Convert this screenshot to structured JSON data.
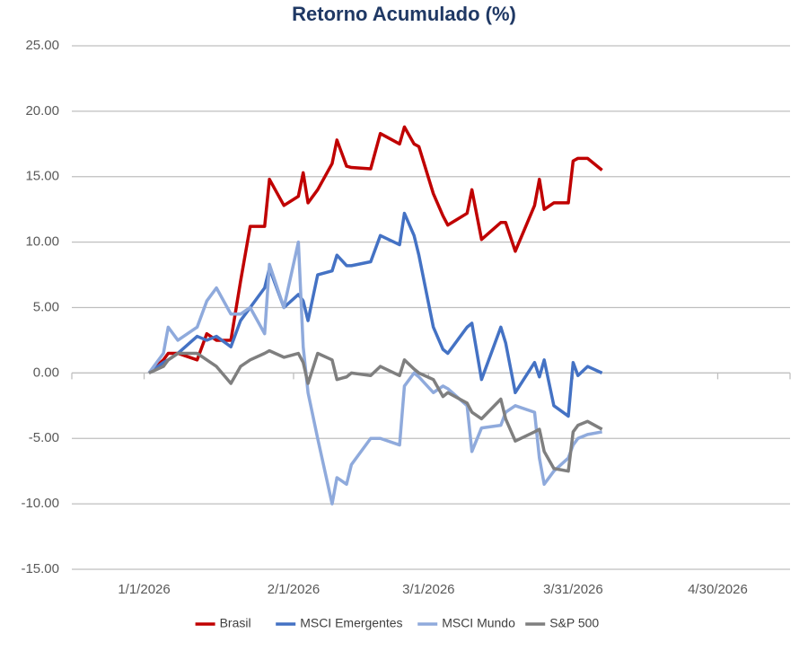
{
  "chart_data": {
    "type": "line",
    "title": "Retorno Acumulado (%)",
    "x": [
      "2026-01-02",
      "2026-01-05",
      "2026-01-06",
      "2026-01-08",
      "2026-01-12",
      "2026-01-14",
      "2026-01-16",
      "2026-01-19",
      "2026-01-21",
      "2026-01-23",
      "2026-01-26",
      "2026-01-27",
      "2026-01-30",
      "2026-02-02",
      "2026-02-03",
      "2026-02-04",
      "2026-02-06",
      "2026-02-09",
      "2026-02-10",
      "2026-02-12",
      "2026-02-13",
      "2026-02-17",
      "2026-02-19",
      "2026-02-23",
      "2026-02-24",
      "2026-02-26",
      "2026-02-27",
      "2026-03-02",
      "2026-03-04",
      "2026-03-05",
      "2026-03-09",
      "2026-03-10",
      "2026-03-12",
      "2026-03-16",
      "2026-03-17",
      "2026-03-19",
      "2026-03-23",
      "2026-03-24",
      "2026-03-25",
      "2026-03-27",
      "2026-03-30",
      "2026-03-31",
      "2026-04-01",
      "2026-04-03",
      "2026-04-06"
    ],
    "series": [
      {
        "name": "Brasil",
        "color": "#c00000",
        "values": [
          0,
          1.0,
          1.5,
          1.5,
          1.0,
          3.0,
          2.5,
          2.5,
          7.0,
          11.2,
          11.2,
          14.8,
          12.8,
          13.5,
          15.3,
          13.0,
          14.0,
          16.0,
          17.8,
          15.8,
          15.7,
          15.6,
          18.3,
          17.5,
          18.8,
          17.5,
          17.3,
          13.7,
          12.0,
          11.3,
          12.2,
          14.0,
          10.2,
          11.5,
          11.5,
          9.3,
          12.8,
          14.8,
          12.5,
          13.0,
          13.0,
          16.2,
          16.4,
          16.4,
          15.5
        ]
      },
      {
        "name": "MSCI Emergentes",
        "color": "#4472c4",
        "values": [
          0,
          0.8,
          1.0,
          1.5,
          2.8,
          2.5,
          2.8,
          2.0,
          4.0,
          5.0,
          6.5,
          8.0,
          5.0,
          6.0,
          5.5,
          4.0,
          7.5,
          7.8,
          9.0,
          8.2,
          8.2,
          8.5,
          10.5,
          9.8,
          12.2,
          10.5,
          9.0,
          3.5,
          1.8,
          1.5,
          3.5,
          3.8,
          -0.5,
          3.5,
          2.3,
          -1.5,
          0.8,
          -0.3,
          1.0,
          -2.5,
          -3.3,
          0.8,
          -0.2,
          0.5,
          0.0
        ]
      },
      {
        "name": "MSCI Mundo",
        "color": "#8faadc",
        "values": [
          0,
          1.5,
          3.5,
          2.5,
          3.5,
          5.5,
          6.5,
          4.5,
          4.5,
          5.0,
          3.0,
          8.3,
          5.0,
          10.0,
          2.0,
          -1.5,
          -5.0,
          -10.0,
          -8.0,
          -8.5,
          -7.0,
          -5.0,
          -5.0,
          -5.5,
          -1.0,
          0.0,
          -0.3,
          -1.5,
          -1.0,
          -1.2,
          -2.5,
          -6.0,
          -4.2,
          -4.0,
          -3.0,
          -2.5,
          -3.0,
          -6.5,
          -8.5,
          -7.5,
          -6.5,
          -5.5,
          -5.0,
          -4.7,
          -4.5
        ]
      },
      {
        "name": "S&P 500",
        "color": "#7f7f7f",
        "values": [
          0,
          0.5,
          1.0,
          1.5,
          1.5,
          1.0,
          0.5,
          -0.8,
          0.5,
          1.0,
          1.5,
          1.7,
          1.2,
          1.5,
          0.8,
          -0.8,
          1.5,
          1.0,
          -0.5,
          -0.3,
          0.0,
          -0.2,
          0.5,
          -0.2,
          1.0,
          0.3,
          0.0,
          -0.5,
          -1.8,
          -1.5,
          -2.3,
          -3.0,
          -3.5,
          -2.0,
          -3.5,
          -5.2,
          -4.5,
          -4.3,
          -6.0,
          -7.3,
          -7.5,
          -4.5,
          -4.0,
          -3.7,
          -4.3
        ]
      }
    ],
    "xlim": [
      "2025-12-17",
      "2026-05-15"
    ],
    "xticks": [
      {
        "value": "2026-01-01",
        "label": "1/1/2026"
      },
      {
        "value": "2026-02-01",
        "label": "2/1/2026"
      },
      {
        "value": "2026-03-01",
        "label": "3/1/2026"
      },
      {
        "value": "2026-03-31",
        "label": "3/31/2026"
      },
      {
        "value": "2026-04-30",
        "label": "4/30/2026"
      }
    ],
    "ylim": [
      -15,
      25
    ],
    "yticks": [
      {
        "value": -15,
        "label": "-15.00"
      },
      {
        "value": -10,
        "label": "-10.00"
      },
      {
        "value": -5,
        "label": "-5.00"
      },
      {
        "value": 0,
        "label": "0.00"
      },
      {
        "value": 5,
        "label": "5.00"
      },
      {
        "value": 10,
        "label": "10.00"
      },
      {
        "value": 15,
        "label": "15.00"
      },
      {
        "value": 20,
        "label": "20.00"
      },
      {
        "value": 25,
        "label": "25.00"
      }
    ],
    "grid": true,
    "legend": "bottom"
  }
}
